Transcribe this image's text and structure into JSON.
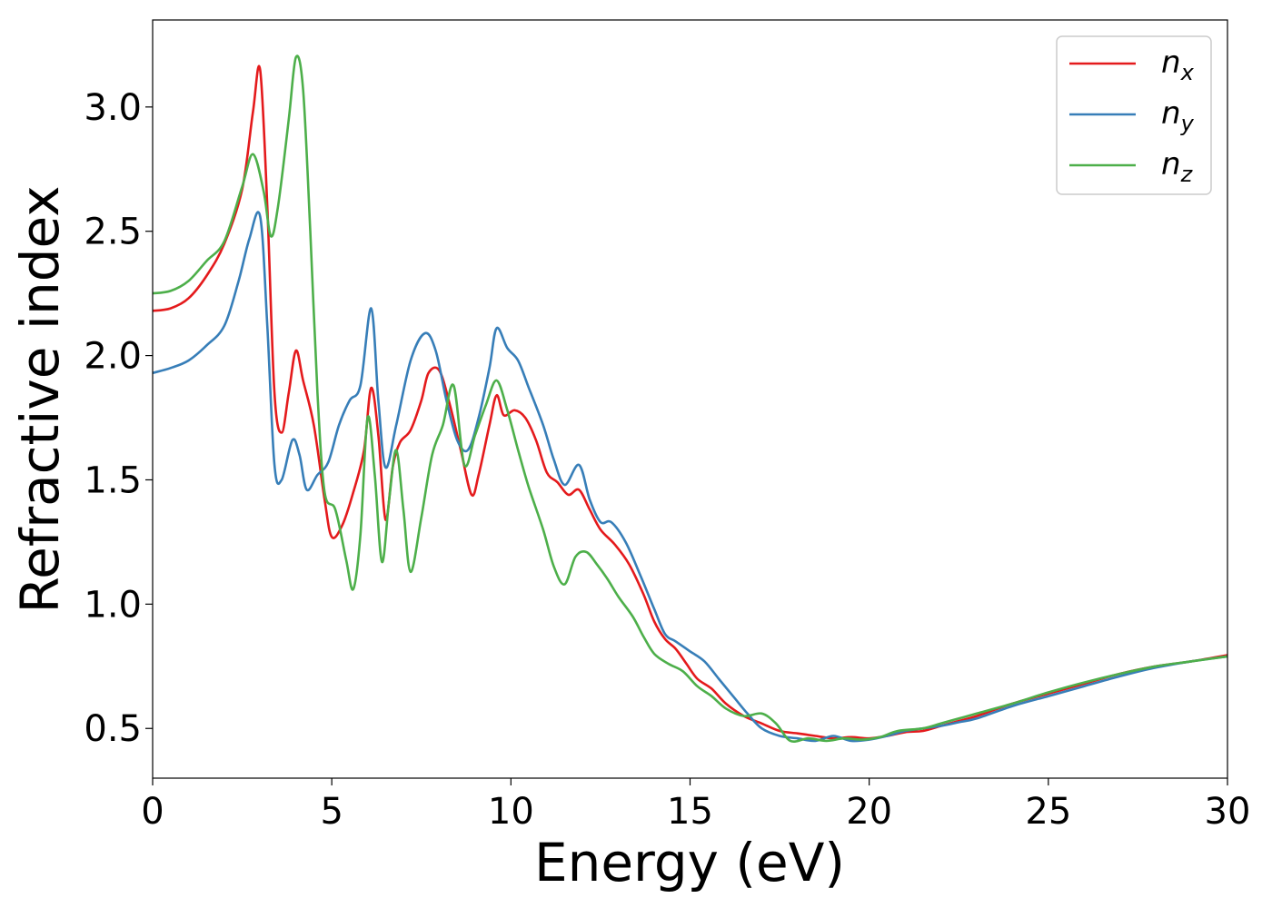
{
  "chart_data": {
    "type": "line",
    "title": "",
    "xlabel": "Energy (eV)",
    "ylabel": "Refractive index",
    "xlim": [
      0,
      30
    ],
    "ylim": [
      0.3,
      3.35
    ],
    "xticks": [
      0,
      5,
      10,
      15,
      20,
      25,
      30
    ],
    "xtick_labels": [
      "0",
      "5",
      "10",
      "15",
      "20",
      "25",
      "30"
    ],
    "yticks": [
      0.5,
      1.0,
      1.5,
      2.0,
      2.5,
      3.0
    ],
    "ytick_labels": [
      "0.5",
      "1.0",
      "1.5",
      "2.0",
      "2.5",
      "3.0"
    ],
    "grid": false,
    "legend_position": "top-right",
    "series": [
      {
        "name": "n_x",
        "label_base": "n",
        "label_sub": "x",
        "color": "#e41a1c",
        "points": [
          [
            0,
            2.18
          ],
          [
            0.5,
            2.19
          ],
          [
            1.0,
            2.23
          ],
          [
            1.5,
            2.32
          ],
          [
            2.0,
            2.45
          ],
          [
            2.5,
            2.67
          ],
          [
            2.8,
            2.98
          ],
          [
            3.0,
            3.15
          ],
          [
            3.2,
            2.6
          ],
          [
            3.4,
            1.85
          ],
          [
            3.6,
            1.69
          ],
          [
            3.8,
            1.85
          ],
          [
            4.0,
            2.02
          ],
          [
            4.2,
            1.9
          ],
          [
            4.5,
            1.72
          ],
          [
            4.8,
            1.42
          ],
          [
            5.0,
            1.27
          ],
          [
            5.3,
            1.32
          ],
          [
            5.6,
            1.45
          ],
          [
            5.9,
            1.62
          ],
          [
            6.1,
            1.87
          ],
          [
            6.3,
            1.68
          ],
          [
            6.5,
            1.34
          ],
          [
            6.7,
            1.55
          ],
          [
            6.9,
            1.65
          ],
          [
            7.2,
            1.7
          ],
          [
            7.5,
            1.82
          ],
          [
            7.7,
            1.93
          ],
          [
            8.0,
            1.94
          ],
          [
            8.3,
            1.8
          ],
          [
            8.6,
            1.62
          ],
          [
            8.9,
            1.44
          ],
          [
            9.1,
            1.52
          ],
          [
            9.4,
            1.72
          ],
          [
            9.6,
            1.84
          ],
          [
            9.8,
            1.76
          ],
          [
            10.1,
            1.78
          ],
          [
            10.4,
            1.75
          ],
          [
            10.7,
            1.66
          ],
          [
            11.0,
            1.53
          ],
          [
            11.3,
            1.49
          ],
          [
            11.6,
            1.44
          ],
          [
            11.9,
            1.46
          ],
          [
            12.2,
            1.38
          ],
          [
            12.5,
            1.3
          ],
          [
            12.9,
            1.24
          ],
          [
            13.3,
            1.16
          ],
          [
            13.7,
            1.04
          ],
          [
            14.0,
            0.93
          ],
          [
            14.3,
            0.86
          ],
          [
            14.6,
            0.82
          ],
          [
            14.9,
            0.76
          ],
          [
            15.2,
            0.7
          ],
          [
            15.6,
            0.66
          ],
          [
            16.0,
            0.6
          ],
          [
            16.5,
            0.55
          ],
          [
            17.0,
            0.52
          ],
          [
            17.5,
            0.49
          ],
          [
            18.0,
            0.48
          ],
          [
            18.5,
            0.47
          ],
          [
            19.0,
            0.46
          ],
          [
            19.5,
            0.465
          ],
          [
            20.0,
            0.46
          ],
          [
            20.5,
            0.47
          ],
          [
            21.0,
            0.485
          ],
          [
            21.5,
            0.49
          ],
          [
            22.0,
            0.51
          ],
          [
            22.5,
            0.53
          ],
          [
            23.0,
            0.55
          ],
          [
            24.0,
            0.6
          ],
          [
            25.0,
            0.64
          ],
          [
            26.0,
            0.68
          ],
          [
            27.0,
            0.72
          ],
          [
            28.0,
            0.75
          ],
          [
            29.0,
            0.77
          ],
          [
            30.0,
            0.795
          ]
        ]
      },
      {
        "name": "n_y",
        "label_base": "n",
        "label_sub": "y",
        "color": "#377eb8",
        "points": [
          [
            0,
            1.93
          ],
          [
            0.5,
            1.95
          ],
          [
            1.0,
            1.98
          ],
          [
            1.5,
            2.04
          ],
          [
            2.0,
            2.12
          ],
          [
            2.4,
            2.3
          ],
          [
            2.7,
            2.47
          ],
          [
            3.0,
            2.56
          ],
          [
            3.2,
            2.12
          ],
          [
            3.4,
            1.56
          ],
          [
            3.6,
            1.5
          ],
          [
            3.9,
            1.66
          ],
          [
            4.1,
            1.6
          ],
          [
            4.3,
            1.46
          ],
          [
            4.6,
            1.52
          ],
          [
            4.9,
            1.57
          ],
          [
            5.2,
            1.72
          ],
          [
            5.5,
            1.82
          ],
          [
            5.8,
            1.88
          ],
          [
            6.1,
            2.19
          ],
          [
            6.3,
            1.82
          ],
          [
            6.5,
            1.55
          ],
          [
            6.8,
            1.72
          ],
          [
            7.2,
            1.98
          ],
          [
            7.6,
            2.09
          ],
          [
            7.9,
            2.02
          ],
          [
            8.2,
            1.82
          ],
          [
            8.5,
            1.66
          ],
          [
            8.8,
            1.62
          ],
          [
            9.1,
            1.75
          ],
          [
            9.4,
            1.95
          ],
          [
            9.6,
            2.11
          ],
          [
            9.9,
            2.03
          ],
          [
            10.2,
            1.98
          ],
          [
            10.5,
            1.87
          ],
          [
            10.9,
            1.72
          ],
          [
            11.2,
            1.58
          ],
          [
            11.5,
            1.48
          ],
          [
            11.9,
            1.56
          ],
          [
            12.2,
            1.42
          ],
          [
            12.5,
            1.33
          ],
          [
            12.8,
            1.33
          ],
          [
            13.2,
            1.25
          ],
          [
            13.6,
            1.12
          ],
          [
            14.0,
            0.98
          ],
          [
            14.3,
            0.88
          ],
          [
            14.6,
            0.85
          ],
          [
            15.0,
            0.81
          ],
          [
            15.4,
            0.77
          ],
          [
            15.8,
            0.7
          ],
          [
            16.2,
            0.63
          ],
          [
            16.6,
            0.56
          ],
          [
            17.0,
            0.5
          ],
          [
            17.5,
            0.47
          ],
          [
            18.0,
            0.46
          ],
          [
            18.5,
            0.45
          ],
          [
            19.0,
            0.47
          ],
          [
            19.5,
            0.45
          ],
          [
            20.0,
            0.455
          ],
          [
            20.5,
            0.47
          ],
          [
            21.0,
            0.49
          ],
          [
            21.5,
            0.5
          ],
          [
            22.0,
            0.51
          ],
          [
            22.5,
            0.525
          ],
          [
            23.0,
            0.54
          ],
          [
            24.0,
            0.59
          ],
          [
            25.0,
            0.63
          ],
          [
            26.0,
            0.67
          ],
          [
            27.0,
            0.71
          ],
          [
            28.0,
            0.745
          ],
          [
            29.0,
            0.77
          ],
          [
            30.0,
            0.79
          ]
        ]
      },
      {
        "name": "n_z",
        "label_base": "n",
        "label_sub": "z",
        "color": "#4daf4a",
        "points": [
          [
            0,
            2.25
          ],
          [
            0.5,
            2.26
          ],
          [
            1.0,
            2.3
          ],
          [
            1.5,
            2.38
          ],
          [
            2.0,
            2.46
          ],
          [
            2.5,
            2.68
          ],
          [
            2.8,
            2.81
          ],
          [
            3.1,
            2.66
          ],
          [
            3.3,
            2.48
          ],
          [
            3.5,
            2.6
          ],
          [
            3.8,
            2.95
          ],
          [
            4.0,
            3.2
          ],
          [
            4.2,
            3.07
          ],
          [
            4.4,
            2.5
          ],
          [
            4.6,
            1.85
          ],
          [
            4.8,
            1.45
          ],
          [
            5.1,
            1.38
          ],
          [
            5.4,
            1.18
          ],
          [
            5.6,
            1.06
          ],
          [
            5.8,
            1.28
          ],
          [
            6.0,
            1.75
          ],
          [
            6.2,
            1.52
          ],
          [
            6.4,
            1.17
          ],
          [
            6.6,
            1.42
          ],
          [
            6.8,
            1.62
          ],
          [
            7.0,
            1.38
          ],
          [
            7.2,
            1.13
          ],
          [
            7.5,
            1.35
          ],
          [
            7.8,
            1.6
          ],
          [
            8.1,
            1.72
          ],
          [
            8.4,
            1.88
          ],
          [
            8.7,
            1.56
          ],
          [
            9.0,
            1.68
          ],
          [
            9.3,
            1.8
          ],
          [
            9.6,
            1.9
          ],
          [
            9.9,
            1.78
          ],
          [
            10.2,
            1.62
          ],
          [
            10.5,
            1.47
          ],
          [
            10.9,
            1.3
          ],
          [
            11.2,
            1.15
          ],
          [
            11.5,
            1.08
          ],
          [
            11.8,
            1.19
          ],
          [
            12.1,
            1.21
          ],
          [
            12.4,
            1.16
          ],
          [
            12.7,
            1.1
          ],
          [
            13.0,
            1.03
          ],
          [
            13.4,
            0.95
          ],
          [
            13.7,
            0.87
          ],
          [
            14.0,
            0.8
          ],
          [
            14.4,
            0.76
          ],
          [
            14.8,
            0.73
          ],
          [
            15.2,
            0.67
          ],
          [
            15.6,
            0.63
          ],
          [
            16.0,
            0.58
          ],
          [
            16.5,
            0.55
          ],
          [
            17.0,
            0.56
          ],
          [
            17.4,
            0.52
          ],
          [
            17.8,
            0.45
          ],
          [
            18.3,
            0.46
          ],
          [
            18.8,
            0.45
          ],
          [
            19.3,
            0.46
          ],
          [
            19.8,
            0.455
          ],
          [
            20.3,
            0.465
          ],
          [
            20.8,
            0.49
          ],
          [
            21.5,
            0.5
          ],
          [
            22.0,
            0.52
          ],
          [
            22.5,
            0.54
          ],
          [
            23.0,
            0.56
          ],
          [
            24.0,
            0.6
          ],
          [
            25.0,
            0.645
          ],
          [
            26.0,
            0.685
          ],
          [
            27.0,
            0.72
          ],
          [
            28.0,
            0.75
          ],
          [
            29.0,
            0.77
          ],
          [
            30.0,
            0.79
          ]
        ]
      }
    ]
  }
}
